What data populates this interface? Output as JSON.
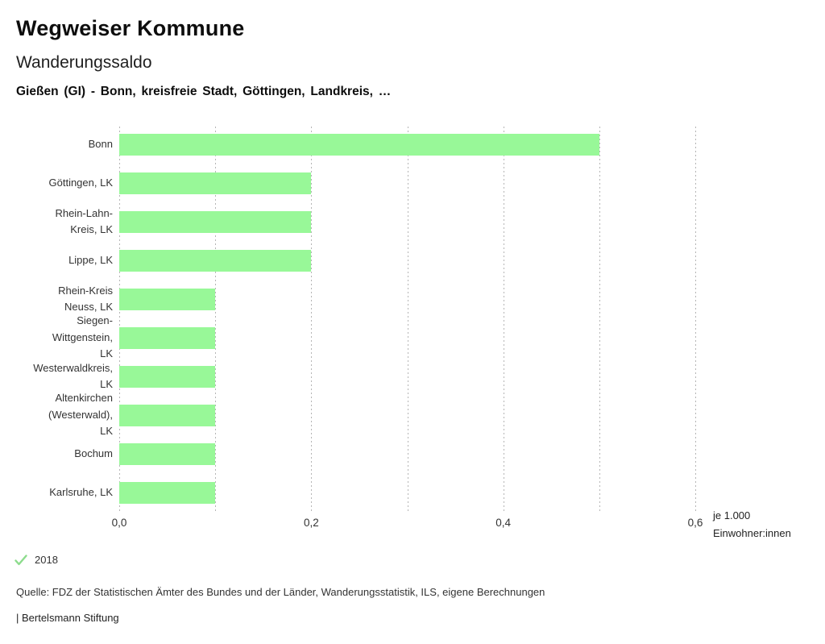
{
  "header": {
    "app_title": "Wegweiser Kommune",
    "chart_title": "Wanderungssaldo",
    "chart_subtitle": "Gießen (GI) - Bonn, kreisfreie Stadt, Göttingen, Landkreis, …"
  },
  "chart_data": {
    "type": "bar",
    "orientation": "horizontal",
    "title": "Wanderungssaldo",
    "categories": [
      "Bonn",
      "Göttingen, LK",
      "Rhein-Lahn-Kreis, LK",
      "Lippe, LK",
      "Rhein-Kreis Neuss, LK",
      "Siegen-Wittgenstein, LK",
      "Westerwaldkreis, LK",
      "Altenkirchen (Westerwald), LK",
      "Bochum",
      "Karlsruhe, LK"
    ],
    "category_label_lines": [
      [
        "Bonn"
      ],
      [
        "Göttingen, LK"
      ],
      [
        "Rhein-Lahn-",
        "Kreis, LK"
      ],
      [
        "Lippe, LK"
      ],
      [
        "Rhein-Kreis",
        "Neuss, LK"
      ],
      [
        "Siegen-",
        "Wittgenstein,",
        "LK"
      ],
      [
        "Westerwaldkreis,",
        "LK"
      ],
      [
        "Altenkirchen",
        "(Westerwald),",
        "LK"
      ],
      [
        "Bochum"
      ],
      [
        "Karlsruhe, LK"
      ]
    ],
    "values": [
      0.5,
      0.2,
      0.2,
      0.2,
      0.1,
      0.1,
      0.1,
      0.1,
      0.1,
      0.1
    ],
    "xlim": [
      0,
      0.6
    ],
    "gridline_step": 0.1,
    "grid": "dotted vertical gridlines",
    "x_ticks": [
      {
        "value": 0.0,
        "label": "0,0"
      },
      {
        "value": 0.2,
        "label": "0,2"
      },
      {
        "value": 0.4,
        "label": "0,4"
      },
      {
        "value": 0.6,
        "label": "0,6"
      }
    ],
    "bar_color": "#98f898",
    "unit_label": [
      "je 1.000",
      "Einwohner:innen"
    ]
  },
  "legend": {
    "year_label": "2018",
    "check_icon_color": "#8ddc8d"
  },
  "footer": {
    "source_text": "Quelle: FDZ der Statistischen Ämter des Bundes und der Länder, Wanderungsstatistik, ILS, eigene Berechnungen",
    "attribution_text": "| Bertelsmann Stiftung"
  }
}
